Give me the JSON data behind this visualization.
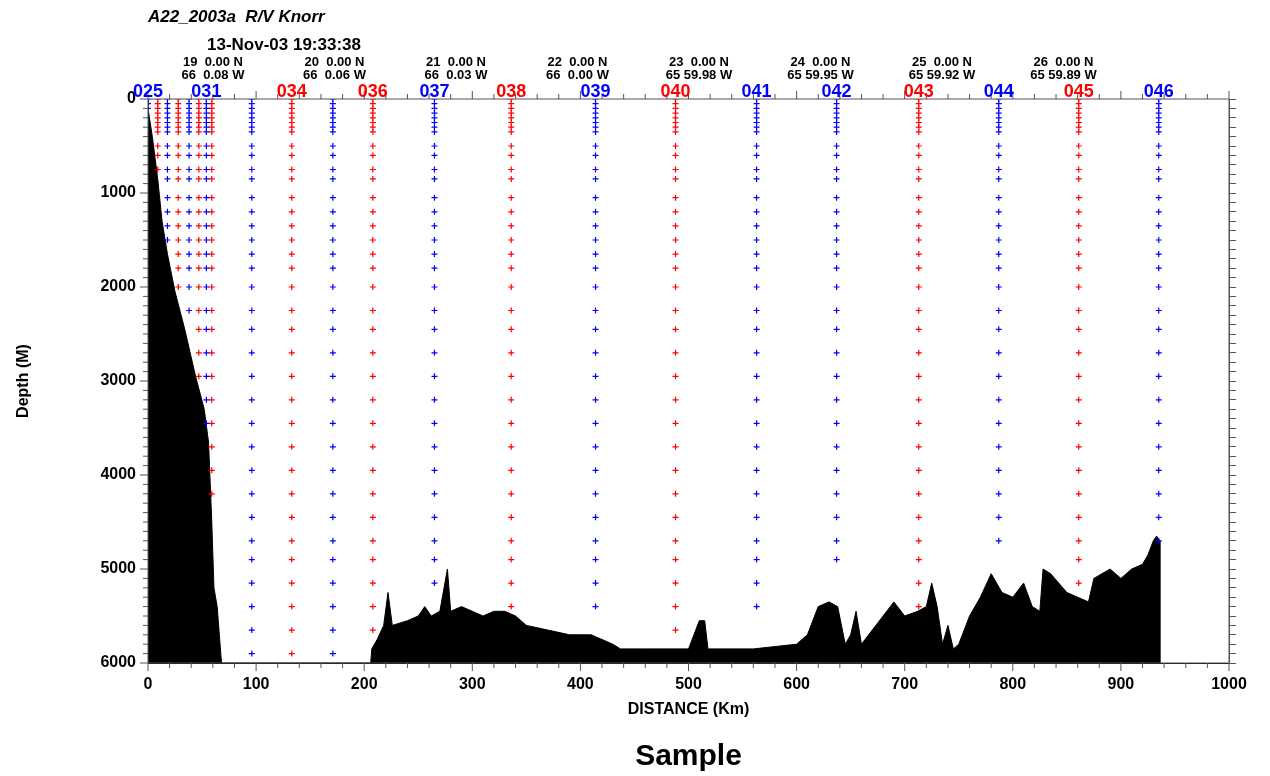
{
  "chart_data": {
    "type": "scatter",
    "title": "A22_2003a  R/V Knorr",
    "subtitle": "13-Nov-03 19:33:38",
    "xlabel": "DISTANCE (Km)",
    "ylabel": "Depth (M)",
    "xlim": [
      0,
      1000
    ],
    "ylim": [
      6000,
      0
    ],
    "xticks": [
      0,
      {
        "value": 20,
        "label": null
      },
      {
        "value": 40,
        "label": null
      },
      {
        "value": 60,
        "label": null
      },
      {
        "value": 80,
        "label": null
      },
      100,
      {
        "value": 120,
        "label": null
      },
      {
        "value": 140,
        "label": null
      },
      {
        "value": 160,
        "label": null
      },
      {
        "value": 180,
        "label": null
      },
      200,
      {
        "value": 220,
        "label": null
      },
      {
        "value": 240,
        "label": null
      },
      {
        "value": 260,
        "label": null
      },
      {
        "value": 280,
        "label": null
      },
      300,
      {
        "value": 320,
        "label": null
      },
      {
        "value": 340,
        "label": null
      },
      {
        "value": 360,
        "label": null
      },
      {
        "value": 380,
        "label": null
      },
      400,
      {
        "value": 420,
        "label": null
      },
      {
        "value": 440,
        "label": null
      },
      {
        "value": 460,
        "label": null
      },
      {
        "value": 480,
        "label": null
      },
      500,
      {
        "value": 520,
        "label": null
      },
      {
        "value": 540,
        "label": null
      },
      {
        "value": 560,
        "label": null
      },
      {
        "value": 580,
        "label": null
      },
      600,
      {
        "value": 620,
        "label": null
      },
      {
        "value": 640,
        "label": null
      },
      {
        "value": 660,
        "label": null
      },
      {
        "value": 680,
        "label": null
      },
      700,
      {
        "value": 720,
        "label": null
      },
      {
        "value": 740,
        "label": null
      },
      {
        "value": 760,
        "label": null
      },
      {
        "value": 780,
        "label": null
      },
      800,
      {
        "value": 820,
        "label": null
      },
      {
        "value": 840,
        "label": null
      },
      {
        "value": 860,
        "label": null
      },
      {
        "value": 880,
        "label": null
      },
      900,
      {
        "value": 920,
        "label": null
      },
      {
        "value": 940,
        "label": null
      },
      {
        "value": 960,
        "label": null
      },
      {
        "value": 980,
        "label": null
      },
      1000
    ],
    "yticks": [
      0,
      {
        "value": 100,
        "label": null
      },
      {
        "value": 200,
        "label": null
      },
      {
        "value": 300,
        "label": null
      },
      {
        "value": 400,
        "label": null
      },
      {
        "value": 500,
        "label": null
      },
      {
        "value": 600,
        "label": null
      },
      {
        "value": 700,
        "label": null
      },
      {
        "value": 800,
        "label": null
      },
      {
        "value": 900,
        "label": null
      },
      1000,
      {
        "value": 1100,
        "label": null
      },
      {
        "value": 1200,
        "label": null
      },
      {
        "value": 1300,
        "label": null
      },
      {
        "value": 1400,
        "label": null
      },
      {
        "value": 1500,
        "label": null
      },
      {
        "value": 1600,
        "label": null
      },
      {
        "value": 1700,
        "label": null
      },
      {
        "value": 1800,
        "label": null
      },
      {
        "value": 1900,
        "label": null
      },
      2000,
      {
        "value": 2100,
        "label": null
      },
      {
        "value": 2200,
        "label": null
      },
      {
        "value": 2300,
        "label": null
      },
      {
        "value": 2400,
        "label": null
      },
      {
        "value": 2500,
        "label": null
      },
      {
        "value": 2600,
        "label": null
      },
      {
        "value": 2700,
        "label": null
      },
      {
        "value": 2800,
        "label": null
      },
      {
        "value": 2900,
        "label": null
      },
      3000,
      {
        "value": 3100,
        "label": null
      },
      {
        "value": 3200,
        "label": null
      },
      {
        "value": 3300,
        "label": null
      },
      {
        "value": 3400,
        "label": null
      },
      {
        "value": 3500,
        "label": null
      },
      {
        "value": 3600,
        "label": null
      },
      {
        "value": 3700,
        "label": null
      },
      {
        "value": 3800,
        "label": null
      },
      {
        "value": 3900,
        "label": null
      },
      4000,
      {
        "value": 4100,
        "label": null
      },
      {
        "value": 4200,
        "label": null
      },
      {
        "value": 4300,
        "label": null
      },
      {
        "value": 4400,
        "label": null
      },
      {
        "value": 4500,
        "label": null
      },
      {
        "value": 4600,
        "label": null
      },
      {
        "value": 4700,
        "label": null
      },
      {
        "value": 4800,
        "label": null
      },
      {
        "value": 4900,
        "label": null
      },
      5000,
      {
        "value": 5100,
        "label": null
      },
      {
        "value": 5200,
        "label": null
      },
      {
        "value": 5300,
        "label": null
      },
      {
        "value": 5400,
        "label": null
      },
      {
        "value": 5500,
        "label": null
      },
      {
        "value": 5600,
        "label": null
      },
      {
        "value": 5700,
        "label": null
      },
      {
        "value": 5800,
        "label": null
      },
      {
        "value": 5900,
        "label": null
      },
      6000
    ],
    "marker": "cross",
    "legend": false,
    "annotations": [
      "19  0.00 N\n66  0.08 W",
      "20  0.00 N\n66  0.06 W",
      "21  0.00 N\n66  0.03 W",
      "22  0.00 N\n66  0.00 W",
      "23  0.00 N\n65 59.98 W",
      "24  0.00 N\n65 59.95 W",
      "25  0.00 N\n65 59.92 W",
      "26  0.00 N\n65 59.89 W",
      "Sample"
    ],
    "series": [
      {
        "type": "area",
        "marker": "none",
        "color": "#000000",
        "x": [
          0,
          0,
          4,
          9,
          13,
          18,
          25,
          34,
          44,
          52,
          56,
          59,
          61,
          64,
          68,
          206,
          207,
          212,
          218,
          222,
          226,
          240,
          250,
          256,
          262,
          270,
          277,
          280,
          290,
          300,
          310,
          320,
          330,
          340,
          350,
          370,
          390,
          410,
          430,
          437,
          460,
          500,
          510,
          515,
          518,
          560,
          600,
          610,
          620,
          630,
          638,
          645,
          650,
          655,
          660,
          670,
          680,
          690,
          700,
          712,
          720,
          725,
          730,
          735,
          740,
          745,
          750,
          760,
          770,
          780,
          790,
          800,
          810,
          818,
          825,
          828,
          835,
          850,
          860,
          870,
          875,
          890,
          900,
          910,
          920,
          925,
          930,
          933,
          936,
          936
        ],
        "values": [
          6000,
          100,
          400,
          850,
          1300,
          1650,
          2050,
          2450,
          2950,
          3300,
          3650,
          4500,
          5200,
          5400,
          6000,
          6000,
          5850,
          5750,
          5600,
          5250,
          5600,
          5550,
          5500,
          5400,
          5500,
          5450,
          5000,
          5450,
          5400,
          5450,
          5500,
          5450,
          5450,
          5500,
          5600,
          5650,
          5700,
          5700,
          5800,
          5850,
          5850,
          5850,
          5550,
          5550,
          5850,
          5850,
          5800,
          5700,
          5400,
          5350,
          5400,
          5800,
          5700,
          5450,
          5800,
          5650,
          5500,
          5350,
          5500,
          5450,
          5400,
          5150,
          5400,
          5800,
          5600,
          5850,
          5800,
          5500,
          5300,
          5050,
          5250,
          5300,
          5150,
          5400,
          5450,
          5000,
          5050,
          5250,
          5300,
          5350,
          5100,
          5000,
          5100,
          5000,
          4950,
          4850,
          4700,
          4650,
          4700,
          6000
        ]
      },
      {
        "name": "025",
        "color": "#0000ff",
        "x": [
          0,
          0,
          0
        ],
        "values": [
          0,
          50,
          100
        ]
      },
      {
        "color": "#ff0000",
        "x": [
          9,
          9,
          9,
          9,
          9,
          9,
          9,
          9,
          9,
          9,
          9
        ],
        "values": [
          0,
          50,
          100,
          150,
          200,
          250,
          300,
          350,
          500,
          600,
          750
        ]
      },
      {
        "color": "#0000ff",
        "x": [
          18,
          18,
          18,
          18,
          18,
          18,
          18,
          18,
          18,
          18,
          18,
          18,
          18,
          18,
          18,
          18
        ],
        "values": [
          0,
          50,
          100,
          150,
          200,
          250,
          300,
          350,
          500,
          600,
          750,
          850,
          1050,
          1200,
          1350,
          1500
        ]
      },
      {
        "color": "#ff0000",
        "x": [
          28,
          28,
          28,
          28,
          28,
          28,
          28,
          28,
          28,
          28,
          28,
          28,
          28,
          28,
          28,
          28,
          28,
          28,
          28
        ],
        "values": [
          0,
          50,
          100,
          150,
          200,
          250,
          300,
          350,
          500,
          600,
          750,
          850,
          1050,
          1200,
          1350,
          1500,
          1650,
          1800,
          2000
        ]
      },
      {
        "color": "#0000ff",
        "x": [
          38,
          38,
          38,
          38,
          38,
          38,
          38,
          38,
          38,
          38,
          38,
          38,
          38,
          38,
          38,
          38,
          38,
          38,
          38,
          38
        ],
        "values": [
          0,
          50,
          100,
          150,
          200,
          250,
          300,
          350,
          500,
          600,
          750,
          850,
          1050,
          1200,
          1350,
          1500,
          1650,
          1800,
          2000,
          2250
        ]
      },
      {
        "color": "#ff0000",
        "x": [
          47,
          47,
          47,
          47,
          47,
          47,
          47,
          47,
          47,
          47,
          47,
          47,
          47,
          47,
          47,
          47,
          47,
          47,
          47,
          47,
          47,
          47,
          47
        ],
        "values": [
          0,
          50,
          100,
          150,
          200,
          250,
          300,
          350,
          500,
          600,
          750,
          850,
          1050,
          1200,
          1350,
          1500,
          1650,
          1800,
          2000,
          2250,
          2450,
          2700,
          2950
        ]
      },
      {
        "name": "031",
        "color": "#0000ff",
        "x": [
          54,
          54,
          54,
          54,
          54,
          54,
          54,
          54,
          54,
          54,
          54,
          54,
          54,
          54,
          54,
          54,
          54,
          54,
          54,
          54,
          54,
          54,
          54,
          54,
          54
        ],
        "values": [
          0,
          50,
          100,
          150,
          200,
          250,
          300,
          350,
          500,
          600,
          750,
          850,
          1050,
          1200,
          1350,
          1500,
          1650,
          1800,
          2000,
          2250,
          2450,
          2700,
          2950,
          3200,
          3450
        ]
      },
      {
        "color": "#ff0000",
        "x": [
          59,
          59,
          59,
          59,
          59,
          59,
          59,
          59,
          59,
          59,
          59,
          59,
          59,
          59,
          59,
          59,
          59,
          59,
          59,
          59,
          59,
          59,
          59,
          59,
          59,
          59,
          59,
          59
        ],
        "values": [
          0,
          50,
          100,
          150,
          200,
          250,
          300,
          350,
          500,
          600,
          750,
          850,
          1050,
          1200,
          1350,
          1500,
          1650,
          1800,
          2000,
          2250,
          2450,
          2700,
          2950,
          3200,
          3450,
          3700,
          3950,
          4200
        ]
      },
      {
        "color": "#0000ff",
        "x": [
          96,
          96,
          96,
          96,
          96,
          96,
          96,
          96,
          96,
          96,
          96,
          96,
          96,
          96,
          96,
          96,
          96,
          96,
          96,
          96,
          96,
          96,
          96,
          96,
          96,
          96,
          96,
          96,
          96,
          96,
          96,
          96,
          96,
          96,
          96
        ],
        "values": [
          0,
          50,
          100,
          150,
          200,
          250,
          300,
          350,
          500,
          600,
          750,
          850,
          1050,
          1200,
          1350,
          1500,
          1650,
          1800,
          2000,
          2250,
          2450,
          2700,
          2950,
          3200,
          3450,
          3700,
          3950,
          4200,
          4450,
          4700,
          4900,
          5150,
          5400,
          5650,
          5900
        ]
      },
      {
        "name": "034",
        "color": "#ff0000",
        "x": [
          133,
          133,
          133,
          133,
          133,
          133,
          133,
          133,
          133,
          133,
          133,
          133,
          133,
          133,
          133,
          133,
          133,
          133,
          133,
          133,
          133,
          133,
          133,
          133,
          133,
          133,
          133,
          133,
          133,
          133,
          133,
          133,
          133,
          133,
          133
        ],
        "values": [
          0,
          50,
          100,
          150,
          200,
          250,
          300,
          350,
          500,
          600,
          750,
          850,
          1050,
          1200,
          1350,
          1500,
          1650,
          1800,
          2000,
          2250,
          2450,
          2700,
          2950,
          3200,
          3450,
          3700,
          3950,
          4200,
          4450,
          4700,
          4900,
          5150,
          5400,
          5650,
          5900
        ]
      },
      {
        "color": "#0000ff",
        "x": [
          171,
          171,
          171,
          171,
          171,
          171,
          171,
          171,
          171,
          171,
          171,
          171,
          171,
          171,
          171,
          171,
          171,
          171,
          171,
          171,
          171,
          171,
          171,
          171,
          171,
          171,
          171,
          171,
          171,
          171,
          171,
          171,
          171,
          171,
          171
        ],
        "values": [
          0,
          50,
          100,
          150,
          200,
          250,
          300,
          350,
          500,
          600,
          750,
          850,
          1050,
          1200,
          1350,
          1500,
          1650,
          1800,
          2000,
          2250,
          2450,
          2700,
          2950,
          3200,
          3450,
          3700,
          3950,
          4200,
          4450,
          4700,
          4900,
          5150,
          5400,
          5650,
          5900
        ]
      },
      {
        "name": "036",
        "color": "#ff0000",
        "x": [
          208,
          208,
          208,
          208,
          208,
          208,
          208,
          208,
          208,
          208,
          208,
          208,
          208,
          208,
          208,
          208,
          208,
          208,
          208,
          208,
          208,
          208,
          208,
          208,
          208,
          208,
          208,
          208,
          208,
          208,
          208,
          208,
          208,
          208
        ],
        "values": [
          0,
          50,
          100,
          150,
          200,
          250,
          300,
          350,
          500,
          600,
          750,
          850,
          1050,
          1200,
          1350,
          1500,
          1650,
          1800,
          2000,
          2250,
          2450,
          2700,
          2950,
          3200,
          3450,
          3700,
          3950,
          4200,
          4450,
          4700,
          4900,
          5150,
          5400,
          5650
        ]
      },
      {
        "name": "037",
        "color": "#0000ff",
        "x": [
          265,
          265,
          265,
          265,
          265,
          265,
          265,
          265,
          265,
          265,
          265,
          265,
          265,
          265,
          265,
          265,
          265,
          265,
          265,
          265,
          265,
          265,
          265,
          265,
          265,
          265,
          265,
          265,
          265,
          265,
          265,
          265
        ],
        "values": [
          0,
          50,
          100,
          150,
          200,
          250,
          300,
          350,
          500,
          600,
          750,
          850,
          1050,
          1200,
          1350,
          1500,
          1650,
          1800,
          2000,
          2250,
          2450,
          2700,
          2950,
          3200,
          3450,
          3700,
          3950,
          4200,
          4450,
          4700,
          4900,
          5150
        ]
      },
      {
        "name": "038",
        "color": "#ff0000",
        "x": [
          336,
          336,
          336,
          336,
          336,
          336,
          336,
          336,
          336,
          336,
          336,
          336,
          336,
          336,
          336,
          336,
          336,
          336,
          336,
          336,
          336,
          336,
          336,
          336,
          336,
          336,
          336,
          336,
          336,
          336,
          336,
          336,
          336
        ],
        "values": [
          0,
          50,
          100,
          150,
          200,
          250,
          300,
          350,
          500,
          600,
          750,
          850,
          1050,
          1200,
          1350,
          1500,
          1650,
          1800,
          2000,
          2250,
          2450,
          2700,
          2950,
          3200,
          3450,
          3700,
          3950,
          4200,
          4450,
          4700,
          4900,
          5150,
          5400
        ]
      },
      {
        "name": "039",
        "color": "#0000ff",
        "x": [
          414,
          414,
          414,
          414,
          414,
          414,
          414,
          414,
          414,
          414,
          414,
          414,
          414,
          414,
          414,
          414,
          414,
          414,
          414,
          414,
          414,
          414,
          414,
          414,
          414,
          414,
          414,
          414,
          414,
          414,
          414,
          414,
          414
        ],
        "values": [
          0,
          50,
          100,
          150,
          200,
          250,
          300,
          350,
          500,
          600,
          750,
          850,
          1050,
          1200,
          1350,
          1500,
          1650,
          1800,
          2000,
          2250,
          2450,
          2700,
          2950,
          3200,
          3450,
          3700,
          3950,
          4200,
          4450,
          4700,
          4900,
          5150,
          5400
        ]
      },
      {
        "name": "040",
        "color": "#ff0000",
        "x": [
          488,
          488,
          488,
          488,
          488,
          488,
          488,
          488,
          488,
          488,
          488,
          488,
          488,
          488,
          488,
          488,
          488,
          488,
          488,
          488,
          488,
          488,
          488,
          488,
          488,
          488,
          488,
          488,
          488,
          488,
          488,
          488,
          488,
          488
        ],
        "values": [
          0,
          50,
          100,
          150,
          200,
          250,
          300,
          350,
          500,
          600,
          750,
          850,
          1050,
          1200,
          1350,
          1500,
          1650,
          1800,
          2000,
          2250,
          2450,
          2700,
          2950,
          3200,
          3450,
          3700,
          3950,
          4200,
          4450,
          4700,
          4900,
          5150,
          5400,
          5650
        ]
      },
      {
        "name": "041",
        "color": "#0000ff",
        "x": [
          563,
          563,
          563,
          563,
          563,
          563,
          563,
          563,
          563,
          563,
          563,
          563,
          563,
          563,
          563,
          563,
          563,
          563,
          563,
          563,
          563,
          563,
          563,
          563,
          563,
          563,
          563,
          563,
          563,
          563,
          563,
          563,
          563
        ],
        "values": [
          0,
          50,
          100,
          150,
          200,
          250,
          300,
          350,
          500,
          600,
          750,
          850,
          1050,
          1200,
          1350,
          1500,
          1650,
          1800,
          2000,
          2250,
          2450,
          2700,
          2950,
          3200,
          3450,
          3700,
          3950,
          4200,
          4450,
          4700,
          4900,
          5150,
          5400
        ]
      },
      {
        "name": "042",
        "color": "#0000ff",
        "x": [
          637,
          637,
          637,
          637,
          637,
          637,
          637,
          637,
          637,
          637,
          637,
          637,
          637,
          637,
          637,
          637,
          637,
          637,
          637,
          637,
          637,
          637,
          637,
          637,
          637,
          637,
          637,
          637,
          637,
          637,
          637
        ],
        "values": [
          0,
          50,
          100,
          150,
          200,
          250,
          300,
          350,
          500,
          600,
          750,
          850,
          1050,
          1200,
          1350,
          1500,
          1650,
          1800,
          2000,
          2250,
          2450,
          2700,
          2950,
          3200,
          3450,
          3700,
          3950,
          4200,
          4450,
          4700,
          4900
        ]
      },
      {
        "name": "043",
        "color": "#ff0000",
        "x": [
          713,
          713,
          713,
          713,
          713,
          713,
          713,
          713,
          713,
          713,
          713,
          713,
          713,
          713,
          713,
          713,
          713,
          713,
          713,
          713,
          713,
          713,
          713,
          713,
          713,
          713,
          713,
          713,
          713,
          713,
          713,
          713,
          713
        ],
        "values": [
          0,
          50,
          100,
          150,
          200,
          250,
          300,
          350,
          500,
          600,
          750,
          850,
          1050,
          1200,
          1350,
          1500,
          1650,
          1800,
          2000,
          2250,
          2450,
          2700,
          2950,
          3200,
          3450,
          3700,
          3950,
          4200,
          4450,
          4700,
          4900,
          5150,
          5400
        ]
      },
      {
        "name": "044",
        "color": "#0000ff",
        "x": [
          787,
          787,
          787,
          787,
          787,
          787,
          787,
          787,
          787,
          787,
          787,
          787,
          787,
          787,
          787,
          787,
          787,
          787,
          787,
          787,
          787,
          787,
          787,
          787,
          787,
          787,
          787,
          787,
          787,
          787
        ],
        "values": [
          0,
          50,
          100,
          150,
          200,
          250,
          300,
          350,
          500,
          600,
          750,
          850,
          1050,
          1200,
          1350,
          1500,
          1650,
          1800,
          2000,
          2250,
          2450,
          2700,
          2950,
          3200,
          3450,
          3700,
          3950,
          4200,
          4450,
          4700
        ]
      },
      {
        "name": "045",
        "color": "#ff0000",
        "x": [
          861,
          861,
          861,
          861,
          861,
          861,
          861,
          861,
          861,
          861,
          861,
          861,
          861,
          861,
          861,
          861,
          861,
          861,
          861,
          861,
          861,
          861,
          861,
          861,
          861,
          861,
          861,
          861,
          861,
          861,
          861,
          861
        ],
        "values": [
          0,
          50,
          100,
          150,
          200,
          250,
          300,
          350,
          500,
          600,
          750,
          850,
          1050,
          1200,
          1350,
          1500,
          1650,
          1800,
          2000,
          2250,
          2450,
          2700,
          2950,
          3200,
          3450,
          3700,
          3950,
          4200,
          4450,
          4700,
          4900,
          5150
        ]
      },
      {
        "name": "046",
        "color": "#0000ff",
        "x": [
          935,
          935,
          935,
          935,
          935,
          935,
          935,
          935,
          935,
          935,
          935,
          935,
          935,
          935,
          935,
          935,
          935,
          935,
          935,
          935,
          935,
          935,
          935,
          935,
          935,
          935,
          935,
          935,
          935,
          935
        ],
        "values": [
          0,
          50,
          100,
          150,
          200,
          250,
          300,
          350,
          500,
          600,
          750,
          850,
          1050,
          1200,
          1350,
          1500,
          1650,
          1800,
          2000,
          2250,
          2450,
          2700,
          2950,
          3200,
          3450,
          3700,
          3950,
          4200,
          4450,
          4700
        ]
      }
    ]
  }
}
